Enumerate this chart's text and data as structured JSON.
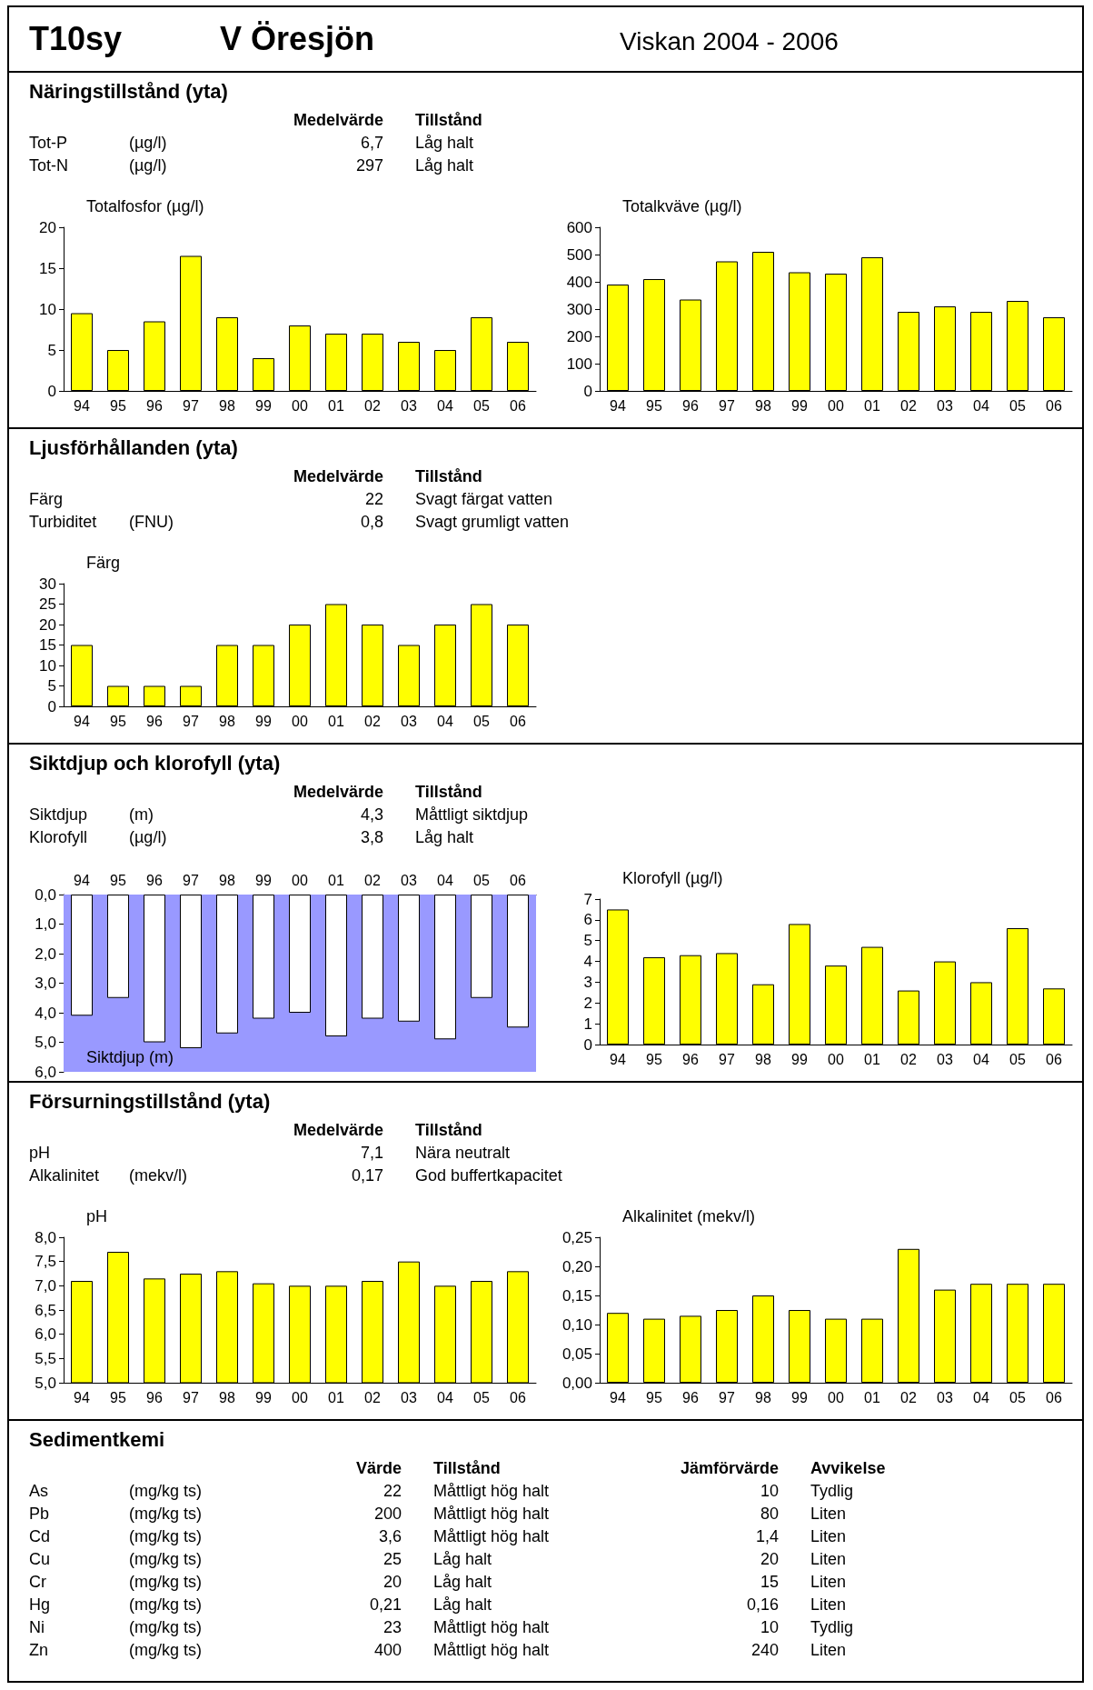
{
  "chart_data": [
    {
      "type": "other",
      "title": "T10sy",
      "subtitle": "V Öresjön",
      "annotations": [
        "Viskan 2004 - 2006"
      ]
    },
    {
      "type": "other",
      "title": "Näringstillstånd (yta)",
      "categories": [
        null,
        null,
        "Medelvärde",
        "Tillstånd"
      ],
      "annotations": [
        "Tot-P\t(µg/l)\t6,7\tLåg halt",
        "Tot-N\t(µg/l)\t297\tLåg halt"
      ]
    },
    {
      "type": "bar",
      "title": "Totalfosfor (µg/l)",
      "categories": [
        "94",
        "95",
        "96",
        "97",
        "98",
        "99",
        "00",
        "01",
        "02",
        "03",
        "04",
        "05",
        "06"
      ],
      "values": [
        9.5,
        5,
        8.5,
        16.5,
        9,
        4,
        8,
        7,
        7,
        6,
        5,
        9,
        6
      ],
      "color": "#ffff00",
      "ylim": [
        0,
        20
      ],
      "yticks": [
        0,
        5,
        10,
        15,
        20
      ]
    },
    {
      "type": "bar",
      "title": "Totalkväve (µg/l)",
      "categories": [
        "94",
        "95",
        "96",
        "97",
        "98",
        "99",
        "00",
        "01",
        "02",
        "03",
        "04",
        "05",
        "06"
      ],
      "values": [
        390,
        410,
        335,
        475,
        510,
        435,
        430,
        490,
        290,
        310,
        290,
        330,
        270
      ],
      "color": "#ffff00",
      "ylim": [
        0,
        600
      ],
      "yticks": [
        0,
        100,
        200,
        300,
        400,
        500,
        600
      ]
    },
    {
      "type": "other",
      "title": "Ljusförhållanden (yta)",
      "categories": [
        null,
        null,
        "Medelvärde",
        "Tillstånd"
      ],
      "annotations": [
        "Färg\t\t22\tSvagt färgat vatten",
        "Turbiditet\t(FNU)\t0,8\tSvagt grumligt vatten"
      ]
    },
    {
      "type": "bar",
      "title": "Färg",
      "categories": [
        "94",
        "95",
        "96",
        "97",
        "98",
        "99",
        "00",
        "01",
        "02",
        "03",
        "04",
        "05",
        "06"
      ],
      "values": [
        15,
        5,
        5,
        5,
        15,
        15,
        20,
        25,
        20,
        15,
        20,
        25,
        20
      ],
      "color": "#ffff00",
      "ylim": [
        0,
        30
      ],
      "yticks": [
        0,
        5,
        10,
        15,
        20,
        25,
        30
      ]
    },
    {
      "type": "other",
      "title": "Siktdjup och klorofyll (yta)",
      "categories": [
        null,
        null,
        "Medelvärde",
        "Tillstånd"
      ],
      "annotations": [
        "Siktdjup\t(m)\t4,3\tMåttligt siktdjup",
        "Klorofyll\t(µg/l)\t3,8\tLåg halt"
      ]
    },
    {
      "type": "bar",
      "title": "Siktdjup (m)",
      "categories": [
        "94",
        "95",
        "96",
        "97",
        "98",
        "99",
        "00",
        "01",
        "02",
        "03",
        "04",
        "05",
        "06"
      ],
      "values": [
        4.1,
        3.5,
        5.0,
        5.2,
        4.7,
        4.2,
        4.0,
        4.8,
        4.2,
        4.3,
        4.9,
        3.5,
        4.5
      ],
      "color": "#ffffff",
      "ylim": [
        6,
        0
      ],
      "yticks": [
        {
          "value": 0,
          "label": "0,0"
        },
        {
          "value": 1,
          "label": "1,0"
        },
        {
          "value": 2,
          "label": "2,0"
        },
        {
          "value": 3,
          "label": "3,0"
        },
        {
          "value": 4,
          "label": "4,0"
        },
        {
          "value": 5,
          "label": "5,0"
        },
        {
          "value": 6,
          "label": "6,0"
        }
      ],
      "bands": [
        {
          "axis": "y",
          "from": 0,
          "to": 6,
          "color": "#9999ff"
        }
      ]
    },
    {
      "type": "bar",
      "title": "Klorofyll (µg/l)",
      "categories": [
        "94",
        "95",
        "96",
        "97",
        "98",
        "99",
        "00",
        "01",
        "02",
        "03",
        "04",
        "05",
        "06"
      ],
      "values": [
        6.5,
        4.2,
        4.3,
        4.4,
        2.9,
        5.8,
        3.8,
        4.7,
        2.6,
        4.0,
        3.0,
        5.6,
        2.7
      ],
      "color": "#ffff00",
      "ylim": [
        0,
        7
      ],
      "yticks": [
        0,
        1,
        2,
        3,
        4,
        5,
        6,
        7
      ]
    },
    {
      "type": "other",
      "title": "Försurningstillstånd (yta)",
      "categories": [
        null,
        null,
        "Medelvärde",
        "Tillstånd"
      ],
      "annotations": [
        "pH\t\t7,1\tNära neutralt",
        "Alkalinitet\t(mekv/l)\t0,17\tGod buffertkapacitet"
      ]
    },
    {
      "type": "bar",
      "title": "pH",
      "categories": [
        "94",
        "95",
        "96",
        "97",
        "98",
        "99",
        "00",
        "01",
        "02",
        "03",
        "04",
        "05",
        "06"
      ],
      "values": [
        7.1,
        7.7,
        7.15,
        7.25,
        7.3,
        7.05,
        7.0,
        7.0,
        7.1,
        7.5,
        7.0,
        7.1,
        7.3
      ],
      "color": "#ffff00",
      "ylim": [
        5,
        8
      ],
      "yticks": [
        {
          "value": 5,
          "label": "5,0"
        },
        {
          "value": 5.5,
          "label": "5,5"
        },
        {
          "value": 6,
          "label": "6,0"
        },
        {
          "value": 6.5,
          "label": "6,5"
        },
        {
          "value": 7,
          "label": "7,0"
        },
        {
          "value": 7.5,
          "label": "7,5"
        },
        {
          "value": 8,
          "label": "8,0"
        }
      ]
    },
    {
      "type": "bar",
      "title": "Alkalinitet (mekv/l)",
      "categories": [
        "94",
        "95",
        "96",
        "97",
        "98",
        "99",
        "00",
        "01",
        "02",
        "03",
        "04",
        "05",
        "06"
      ],
      "values": [
        0.12,
        0.11,
        0.115,
        0.125,
        0.15,
        0.125,
        0.11,
        0.11,
        0.23,
        0.16,
        0.17,
        0.17,
        0.17
      ],
      "color": "#ffff00",
      "ylim": [
        0,
        0.25
      ],
      "yticks": [
        {
          "value": 0,
          "label": "0,00"
        },
        {
          "value": 0.05,
          "label": "0,05"
        },
        {
          "value": 0.1,
          "label": "0,10"
        },
        {
          "value": 0.15,
          "label": "0,15"
        },
        {
          "value": 0.2,
          "label": "0,20"
        },
        {
          "value": 0.25,
          "label": "0,25"
        }
      ]
    },
    {
      "type": "other",
      "title": "Sedimentkemi",
      "categories": [
        null,
        null,
        "Värde",
        "Tillstånd",
        "Jämförvärde",
        "Avvikelse"
      ],
      "annotations": [
        "As\t(mg/kg ts)\t22\tMåttligt hög halt\t10\tTydlig",
        "Pb\t(mg/kg ts)\t200\tMåttligt hög halt\t80\tLiten",
        "Cd\t(mg/kg ts)\t3,6\tMåttligt hög halt\t1,4\tLiten",
        "Cu\t(mg/kg ts)\t25\tLåg halt\t20\tLiten",
        "Cr\t(mg/kg ts)\t20\tLåg halt\t15\tLiten",
        "Hg\t(mg/kg ts)\t0,21\tLåg halt\t0,16\tLiten",
        "Ni\t(mg/kg ts)\t23\tMåttligt hög halt\t10\tTydlig",
        "Zn\t(mg/kg ts)\t400\tMåttligt hög halt\t240\tLiten"
      ]
    }
  ]
}
